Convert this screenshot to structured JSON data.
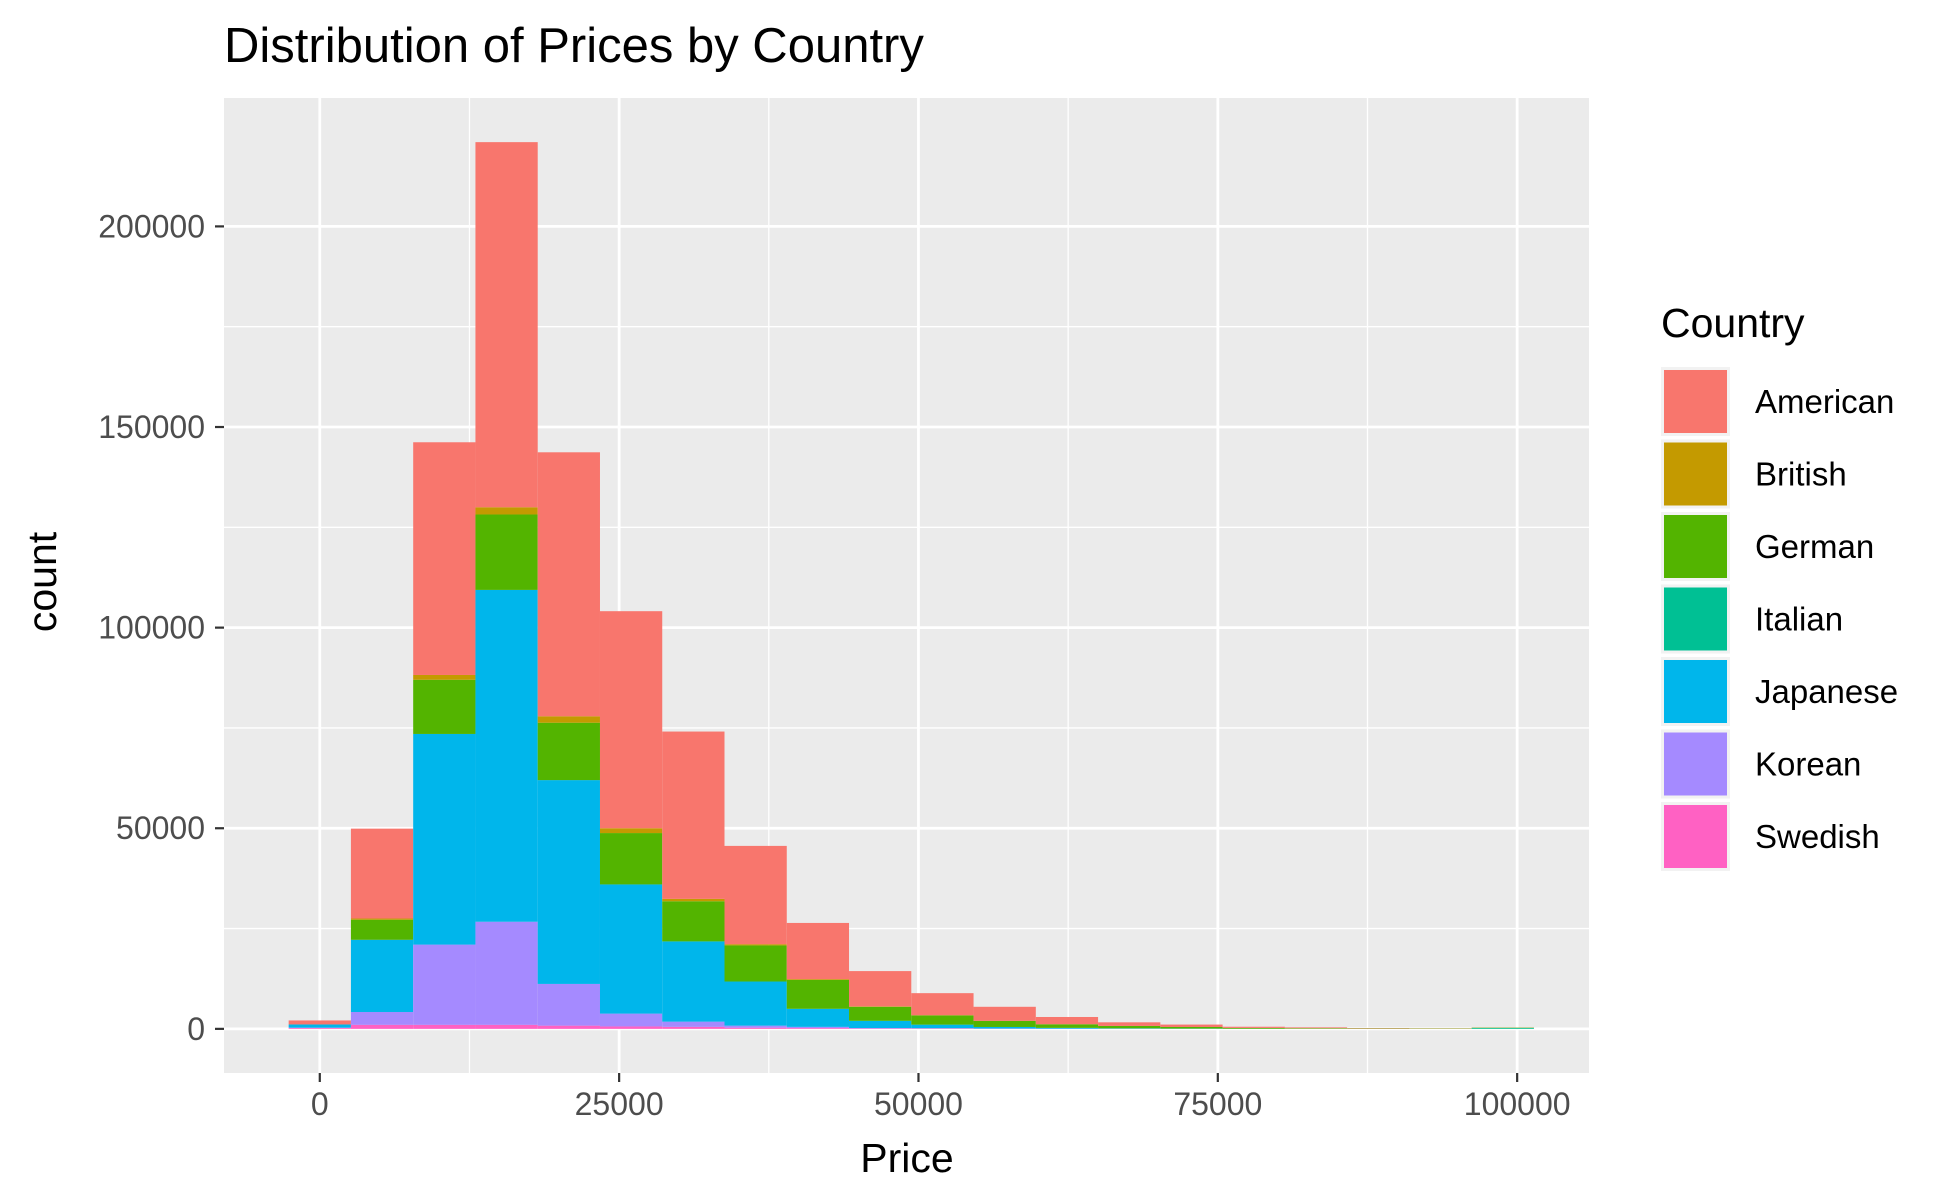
{
  "chart_data": {
    "type": "bar",
    "stacked": true,
    "title": "Distribution of Prices by Country",
    "xlabel": "Price",
    "ylabel": "count",
    "xlim": [
      -8000,
      106000
    ],
    "ylim": [
      -11000,
      232000
    ],
    "x_ticks": [
      {
        "value": 0,
        "label": "0"
      },
      {
        "value": 25000,
        "label": "25000"
      },
      {
        "value": 50000,
        "label": "50000"
      },
      {
        "value": 75000,
        "label": "75000"
      },
      {
        "value": 100000,
        "label": "100000"
      }
    ],
    "y_ticks": [
      {
        "value": 0,
        "label": "0"
      },
      {
        "value": 50000,
        "label": "50000"
      },
      {
        "value": 100000,
        "label": "100000"
      },
      {
        "value": 150000,
        "label": "150000"
      },
      {
        "value": 200000,
        "label": "200000"
      }
    ],
    "bin_width": 5200,
    "bin_centers": [
      0,
      5200,
      10400,
      15600,
      20800,
      26000,
      31200,
      36400,
      41600,
      46800,
      52000,
      57200,
      62400,
      67600,
      72800,
      78000,
      83200,
      88400,
      93600,
      98800
    ],
    "legend_title": "Country",
    "grid": true,
    "series": [
      {
        "name": "Swedish",
        "color": "#FF61C3",
        "values": [
          200,
          1000,
          1000,
          1000,
          800,
          600,
          500,
          300,
          200,
          100,
          100,
          50,
          30,
          20,
          10,
          5,
          5,
          3,
          2,
          1
        ]
      },
      {
        "name": "Korean",
        "color": "#A58AFF",
        "values": [
          100,
          3200,
          20000,
          25700,
          10400,
          3200,
          1300,
          500,
          300,
          100,
          50,
          20,
          10,
          5,
          5,
          2,
          1,
          1,
          1,
          1
        ]
      },
      {
        "name": "Japanese",
        "color": "#00B6EB",
        "values": [
          800,
          18000,
          52500,
          82700,
          50800,
          32200,
          20000,
          11000,
          4500,
          1800,
          900,
          400,
          200,
          100,
          50,
          20,
          10,
          5,
          3,
          2
        ]
      },
      {
        "name": "Italian",
        "color": "#00C094",
        "values": [
          0,
          0,
          0,
          0,
          0,
          0,
          0,
          0,
          0,
          0,
          0,
          0,
          0,
          0,
          0,
          0,
          0,
          0,
          0,
          200
        ]
      },
      {
        "name": "German",
        "color": "#53B400",
        "values": [
          0,
          5000,
          13500,
          18800,
          14300,
          12800,
          10000,
          9000,
          7200,
          3500,
          2300,
          1500,
          900,
          600,
          400,
          200,
          150,
          100,
          80,
          100
        ]
      },
      {
        "name": "British",
        "color": "#C49A00",
        "values": [
          0,
          300,
          1200,
          1800,
          1600,
          1200,
          600,
          300,
          200,
          100,
          50,
          30,
          20,
          10,
          5,
          3,
          2,
          1,
          1,
          1
        ]
      },
      {
        "name": "American",
        "color": "#F8766D",
        "values": [
          1000,
          22400,
          58000,
          91000,
          65800,
          54100,
          41700,
          24500,
          14000,
          8800,
          5500,
          3500,
          1800,
          900,
          600,
          300,
          200,
          100,
          60,
          30
        ]
      }
    ],
    "legend_order": [
      "American",
      "British",
      "German",
      "Italian",
      "Japanese",
      "Korean",
      "Swedish"
    ]
  },
  "theme": {
    "panel_background": "#EBEBEB",
    "grid_major": "#FFFFFF",
    "tick_color": "#333333"
  }
}
